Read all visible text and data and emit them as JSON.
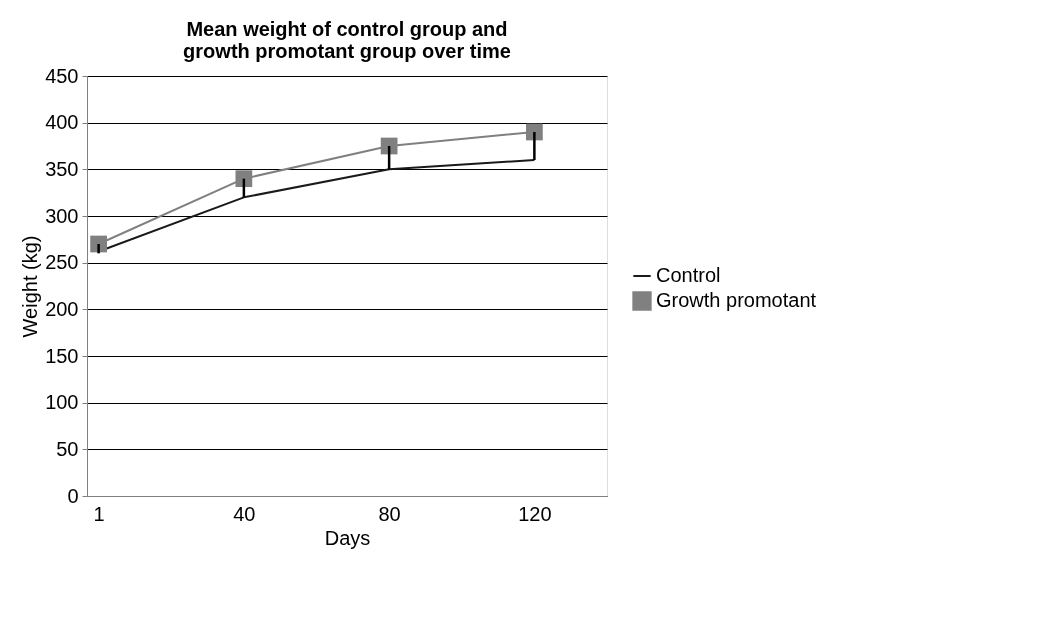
{
  "chart_data": {
    "type": "line",
    "title": "Mean weight of control group and growth promotant group over time",
    "xlabel": "Days",
    "ylabel": "Weight (kg)",
    "categories": [
      "1",
      "40",
      "80",
      "120"
    ],
    "series": [
      {
        "name": "Control",
        "color": "#1a1a1a",
        "marker": "none",
        "values": [
          262,
          320,
          350,
          360
        ]
      },
      {
        "name": "Growth promotant",
        "color": "#808080",
        "marker": "square",
        "values": [
          270,
          340,
          375,
          390
        ],
        "errors": [
          [
            260,
            270
          ],
          [
            320,
            340
          ],
          [
            350,
            375
          ],
          [
            360,
            390
          ]
        ]
      }
    ],
    "ylim": [
      0,
      450
    ],
    "yticks": [
      0,
      50,
      100,
      150,
      200,
      250,
      300,
      350,
      400,
      450
    ],
    "grid": "y",
    "legend": "right",
    "line_style": "solid"
  }
}
